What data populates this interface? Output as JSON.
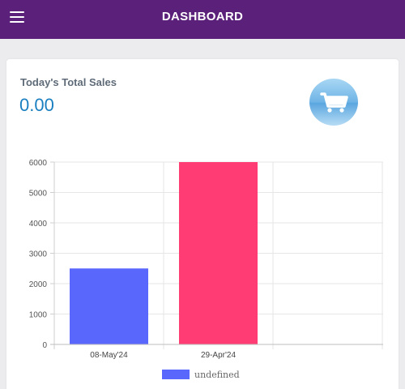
{
  "header": {
    "title": "DASHBOARD",
    "menu_icon": "hamburger-menu-icon"
  },
  "sales_card": {
    "label": "Today's Total Sales",
    "value": "0.00",
    "icon": "shopping-cart-icon",
    "colors": {
      "value": "#1a7fc0",
      "badge": "#7dbbe6"
    }
  },
  "chart_data": {
    "type": "bar",
    "categories": [
      "08-May'24",
      "29-Apr'24"
    ],
    "series": [
      {
        "name": "undefined",
        "values": [
          2500,
          6000
        ],
        "colors": [
          "#5a67fd",
          "#ff3d74"
        ]
      }
    ],
    "yticks": [
      0,
      1000,
      2000,
      3000,
      4000,
      5000,
      6000
    ],
    "ylim": [
      0,
      6000
    ],
    "grid": true,
    "legend": "bottom"
  }
}
